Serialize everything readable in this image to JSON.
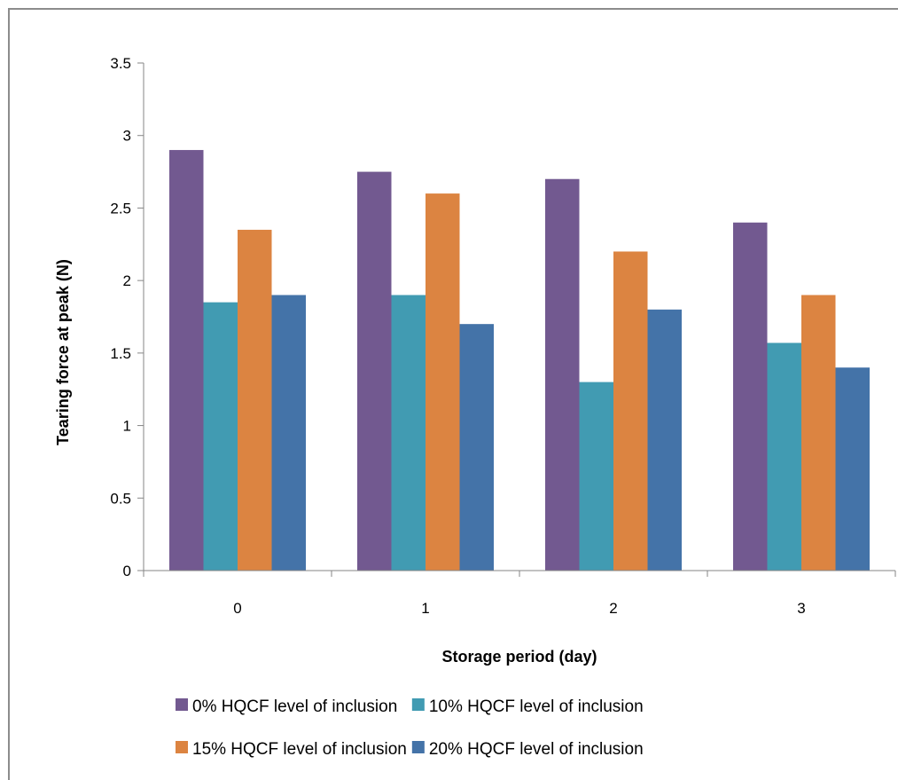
{
  "chart_data": {
    "type": "bar",
    "xlabel": "Storage period (day)",
    "ylabel": "Tearing force at peak (N)",
    "ylim": [
      0,
      3.5
    ],
    "yticks": [
      0,
      0.5,
      1,
      1.5,
      2,
      2.5,
      3,
      3.5
    ],
    "ytick_labels": [
      "0",
      "0.5",
      "1",
      "1.5",
      "2",
      "2.5",
      "3",
      "3.5"
    ],
    "categories": [
      "0",
      "1",
      "2",
      "3"
    ],
    "grid": false,
    "legend_position": "bottom",
    "series": [
      {
        "name": "0% HQCF level of inclusion",
        "color": "#725990",
        "values": [
          2.9,
          2.75,
          2.7,
          2.4
        ]
      },
      {
        "name": "10% HQCF level of inclusion",
        "color": "#419bb2",
        "values": [
          1.85,
          1.9,
          1.3,
          1.57
        ]
      },
      {
        "name": "15% HQCF level of inclusion",
        "color": "#dc8441",
        "values": [
          2.35,
          2.6,
          2.2,
          1.9
        ]
      },
      {
        "name": "20% HQCF level of inclusion",
        "color": "#4473a8",
        "values": [
          1.9,
          1.7,
          1.8,
          1.4
        ]
      }
    ]
  }
}
